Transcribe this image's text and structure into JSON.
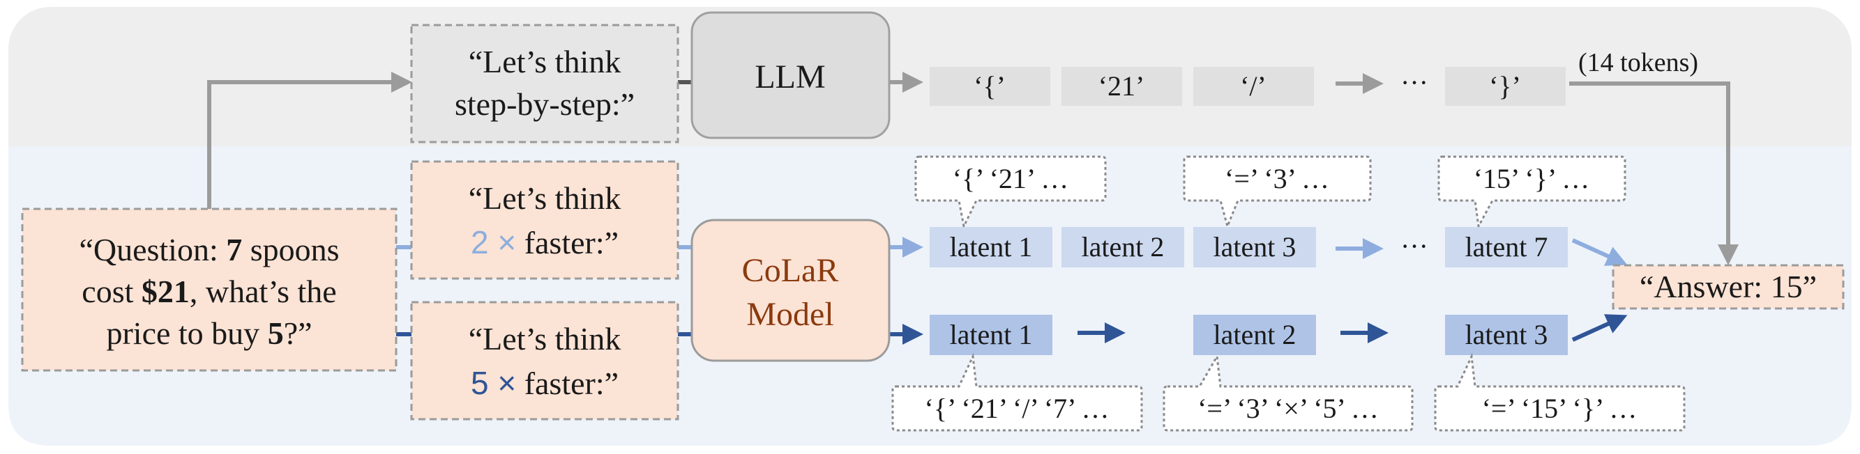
{
  "colors": {
    "top_panel": "#eeeeee",
    "bottom_panel": "#eef3fa",
    "prompt_fill": "#e6e6e6",
    "question_fill": "#fbe3d5",
    "latent_light": "#ccd9ef",
    "latent_dark": "#aec3e6",
    "arrow_gray": "#9b9b9b",
    "arrow_light": "#8eadde",
    "arrow_dark": "#2f5597",
    "colar_text": "#8b3a0e",
    "token_fill": "#e0e0e0"
  },
  "question": {
    "line1_prefix": "“Question: ",
    "line1_bold": "7",
    "line1_suffix": " spoons",
    "line2_prefix": "cost ",
    "line2_bold": "$21",
    "line2_suffix": ", what’s the",
    "line3_prefix": "price to buy ",
    "line3_bold": "5",
    "line3_suffix": "?”"
  },
  "prompt_top": {
    "line1": "“Let’s think",
    "line2": "step-by-step:”"
  },
  "prompt_mid": {
    "line1": "“Let’s think",
    "line2_factor": "2 ×",
    "line2_suffix": " faster:”"
  },
  "prompt_bot": {
    "line1": "“Let’s think",
    "line2_factor": "5 ×",
    "line2_suffix": " faster:”"
  },
  "llm": {
    "label": "LLM"
  },
  "colar": {
    "line1": "CoLaR",
    "line2": "Model"
  },
  "tokens": {
    "items": [
      "‘{’",
      "‘21’",
      "‘/’",
      "‘}’"
    ],
    "ellipsis": "···",
    "count_label": "(14 tokens)"
  },
  "row_2x": {
    "latents": [
      "latent 1",
      "latent 2",
      "latent 3",
      "latent 7"
    ],
    "ellipsis": "···",
    "bubbles": [
      "‘{’ ‘21’ …",
      "‘=’ ‘3’ …",
      "‘15’ ‘}’ …"
    ]
  },
  "row_5x": {
    "latents": [
      "latent 1",
      "latent 2",
      "latent 3"
    ],
    "bubbles": [
      "‘{’ ‘21’ ‘/’ ‘7’ …",
      "‘=’ ‘3’ ‘×’ ‘5’ …",
      "‘=’ ‘15’ ‘}’ …"
    ]
  },
  "answer": {
    "label": "“Answer: 15”"
  }
}
